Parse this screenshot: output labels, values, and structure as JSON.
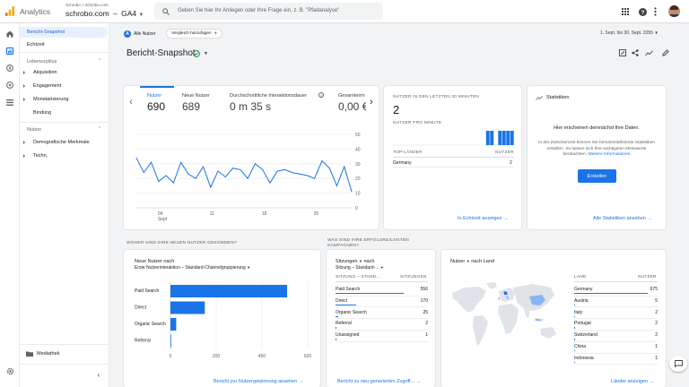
{
  "header": {
    "app_title": "Analytics",
    "account_path": "Schrobo > schrobo.com",
    "property_name": "schrobo.com",
    "stream_name": "GA4",
    "search_placeholder": "Geben Sie hier Ihr Anliegen oder Ihre Frage ein, z. B. \"Pfadanalyse\""
  },
  "sidebar": {
    "items": [
      {
        "label": "Bericht-Snapshot"
      },
      {
        "label": "Echtzeit"
      }
    ],
    "lifecycle": {
      "heading": "Lebenszyklus",
      "items": [
        {
          "label": "Akquisition"
        },
        {
          "label": "Engagement"
        },
        {
          "label": "Monetarisierung"
        },
        {
          "label": "Bindung"
        }
      ]
    },
    "users": {
      "heading": "Nutzer",
      "items": [
        {
          "label": "Demografische Merkmale"
        },
        {
          "label": "Techn."
        }
      ]
    },
    "library": "Mediathek"
  },
  "filters": {
    "segment": "Alle Nutzer",
    "compare": "Vergleich hinzufügen",
    "date_range": "1. Sept. bis 30. Sept. 2055"
  },
  "page": {
    "title": "Bericht-Snapshot"
  },
  "metrics": [
    {
      "label": "Nutzer",
      "value": "690"
    },
    {
      "label": "Neue Nutzer",
      "value": "689"
    },
    {
      "label": "Durchschnittliche Interaktionsdauer",
      "value": "0 m 35 s"
    },
    {
      "label": "Gesamteinn",
      "value": "0,00 €"
    }
  ],
  "realtime": {
    "title": "NUTZER IN DEN LETZTEN 30 MINUTEN",
    "value": "2",
    "per_minute_label": "NUTZER PRO MINUTE",
    "col_country": "TOP-LÄNDER",
    "col_users": "NUTZER",
    "rows": [
      {
        "country": "Germany",
        "users": "2"
      }
    ],
    "link": "In Echtzeit anzeigen"
  },
  "insights": {
    "title": "Statistiken",
    "headline": "Hier erscheinen demnächst Ihre Daten.",
    "body": "In der Zwischenzeit können Sie benutzerdefinierte Statistiken erstellen. So lassen sich Ihre wichtigsten Messwerte beobachten.",
    "more_link": "Weitere Informationen",
    "button": "Erstellen",
    "link": "Alle Statistiken ansehen"
  },
  "sections": {
    "new_users": "WOHER SIND IHRE NEUEN NUTZER GEKOMMEN?",
    "campaigns": "WAS SIND IHRE ERFOLGREICHSTEN KAMPAGNEN?"
  },
  "acquisition": {
    "title": "Neue Nutzer nach",
    "dimension": "Erste Nutzerinteraktion – Standard-Channelgruppierung",
    "link": "Bericht zur Nutzergewinnung ansehen"
  },
  "campaigns": {
    "title": "Sitzungen",
    "title_suffix": "nach",
    "dimension": "Sitzung – Standard-...",
    "col_dim": "SITZUNG – STAND...",
    "col_val": "SITZUNGEN",
    "rows": [
      {
        "label": "Paid Search",
        "value": "556"
      },
      {
        "label": "Direct",
        "value": "170"
      },
      {
        "label": "Organic Search",
        "value": "25"
      },
      {
        "label": "Referral",
        "value": "2"
      },
      {
        "label": "Unassigned",
        "value": "1"
      }
    ],
    "link": "Bericht zu neu generierten Zugriff..."
  },
  "countries": {
    "title": "Nutzer",
    "title_suffix": "nach Land",
    "col_country": "LAND",
    "col_users": "NUTZER",
    "rows": [
      {
        "label": "Germany",
        "value": "675"
      },
      {
        "label": "Austria",
        "value": "5"
      },
      {
        "label": "Italy",
        "value": "2"
      },
      {
        "label": "Portugal",
        "value": "2"
      },
      {
        "label": "Switzerland",
        "value": "2"
      },
      {
        "label": "China",
        "value": "1"
      },
      {
        "label": "Indonesia",
        "value": "1"
      }
    ],
    "link": "Länder anzeigen"
  },
  "colors": {
    "accent": "#1a73e8",
    "accent_light": "#aecbfa",
    "brand": "#f9ab00"
  },
  "chart_data": [
    {
      "type": "line",
      "title": "Nutzer",
      "x_tick_labels": [
        "04 Sept",
        "11",
        "18",
        "25"
      ],
      "y_ticks": [
        0,
        10,
        20,
        30,
        40,
        50
      ],
      "ylim": [
        0,
        50
      ],
      "values": [
        34,
        24,
        31,
        18,
        22,
        17,
        31,
        23,
        20,
        28,
        14,
        25,
        21,
        27,
        26,
        20,
        30,
        26,
        17,
        25,
        26,
        24,
        23,
        22,
        20,
        32,
        27,
        15,
        28,
        11
      ]
    },
    {
      "type": "bar",
      "title": "Neue Nutzer nach Erste Nutzerinteraktion – Standard-Channelgruppierung",
      "categories": [
        "Paid Search",
        "Direct",
        "Organic Search",
        "Referral"
      ],
      "values": [
        510,
        150,
        25,
        2
      ],
      "x_ticks": [
        0,
        200,
        400,
        600
      ],
      "xlim": [
        0,
        600
      ]
    },
    {
      "type": "bar",
      "title": "Nutzer pro Minute",
      "values": [
        0,
        0,
        0,
        0,
        0,
        0,
        0,
        0,
        0,
        0,
        0,
        0,
        0,
        0,
        0,
        0,
        0,
        0,
        0,
        0,
        0,
        0,
        0,
        1,
        1,
        0,
        1,
        1,
        1,
        1
      ],
      "ylim": [
        0,
        1
      ]
    }
  ]
}
